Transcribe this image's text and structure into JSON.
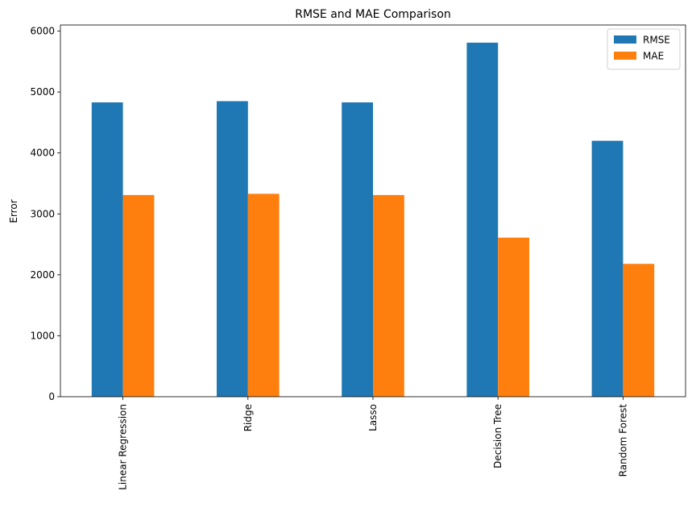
{
  "chart_data": {
    "type": "bar",
    "title": "RMSE and MAE Comparison",
    "xlabel": "",
    "ylabel": "Error",
    "categories": [
      "Linear Regression",
      "Ridge",
      "Lasso",
      "Decision Tree",
      "Random Forest"
    ],
    "series": [
      {
        "name": "RMSE",
        "color": "#1f77b4",
        "values": [
          4830,
          4850,
          4830,
          5810,
          4200
        ]
      },
      {
        "name": "MAE",
        "color": "#ff7f0e",
        "values": [
          3310,
          3330,
          3310,
          2610,
          2180
        ]
      }
    ],
    "ylim": [
      0,
      6100
    ],
    "yticks": [
      0,
      1000,
      2000,
      3000,
      4000,
      5000,
      6000
    ],
    "grid": false,
    "legend": "top-right"
  }
}
